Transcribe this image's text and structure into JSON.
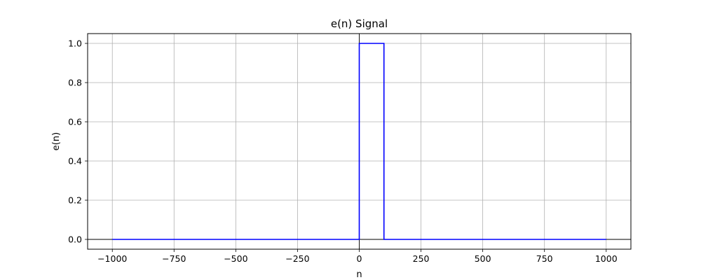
{
  "chart_data": {
    "type": "line",
    "title": "e(n) Signal",
    "xlabel": "n",
    "ylabel": "e(n)",
    "xlim": [
      -1100,
      1100
    ],
    "ylim": [
      -0.05,
      1.05
    ],
    "xticks": [
      -1000,
      -750,
      -500,
      -250,
      0,
      250,
      500,
      750,
      1000
    ],
    "xtick_labels": [
      "−1000",
      "−750",
      "−500",
      "−250",
      "0",
      "250",
      "500",
      "750",
      "1000"
    ],
    "yticks": [
      0.0,
      0.2,
      0.4,
      0.6,
      0.8,
      1.0
    ],
    "ytick_labels": [
      "0.0",
      "0.2",
      "0.4",
      "0.6",
      "0.8",
      "1.0"
    ],
    "grid": true,
    "reference_lines": {
      "x": 0,
      "y": 0
    },
    "series": [
      {
        "color": "#0000ff",
        "x": [
          -1000,
          0,
          0,
          100,
          100,
          1000
        ],
        "y": [
          0,
          0,
          1,
          1,
          0,
          0
        ]
      }
    ]
  }
}
